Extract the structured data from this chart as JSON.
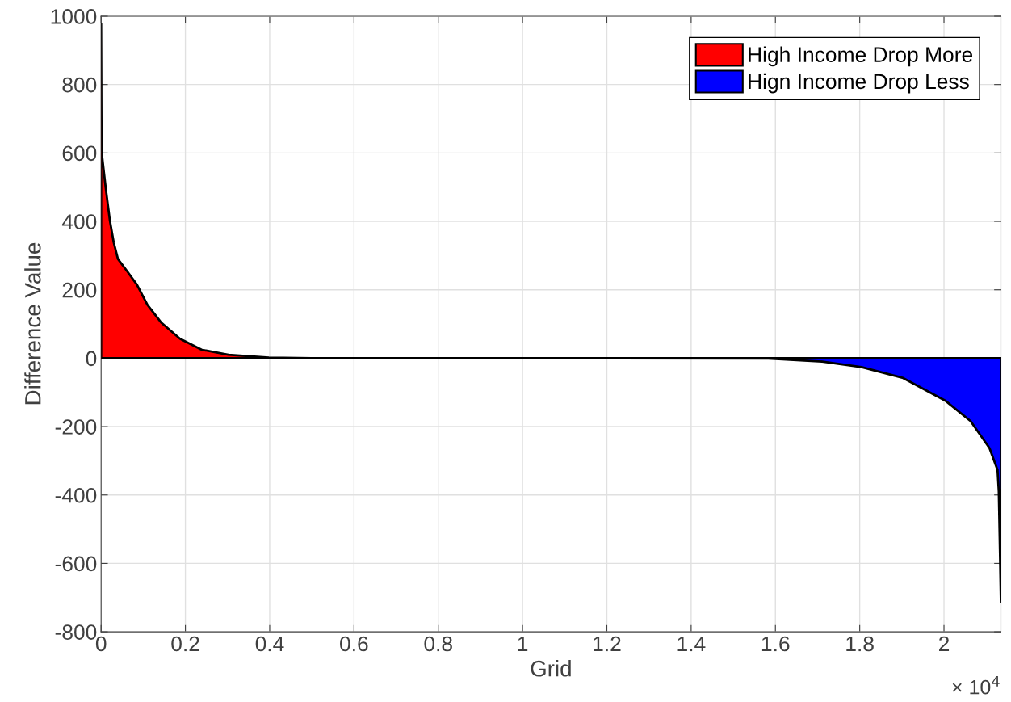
{
  "chart_data": {
    "type": "area",
    "xlabel": "Grid",
    "ylabel": "Difference Value",
    "xlim": [
      0,
      2.135
    ],
    "ylim": [
      -800,
      1000
    ],
    "xticks": [
      0,
      0.2,
      0.4,
      0.6,
      0.8,
      1,
      1.2,
      1.4,
      1.6,
      1.8,
      2
    ],
    "yticks": [
      -800,
      -600,
      -400,
      -200,
      0,
      200,
      400,
      600,
      800,
      1000
    ],
    "annotations": [
      "× 10$^{4}$"
    ],
    "grid": true,
    "legend": "top right",
    "series": [
      {
        "name": "High Income Drop More",
        "color": "#ff0000",
        "x": [
          0,
          0.001,
          0.011,
          0.021,
          0.03,
          0.04,
          0.059,
          0.085,
          0.11,
          0.142,
          0.187,
          0.238,
          0.302,
          0.398,
          0.5,
          1.06
        ],
        "values": [
          978,
          606,
          497,
          401,
          338,
          290,
          259,
          215,
          156,
          105,
          57,
          25,
          10,
          2,
          0,
          0
        ]
      },
      {
        "name": "Hign Income Drop Less",
        "color": "#0000ff",
        "x": [
          1.06,
          1.583,
          1.711,
          1.804,
          1.903,
          2.004,
          2.063,
          2.108,
          2.127,
          2.13,
          2.133,
          2.135
        ],
        "values": [
          0,
          -1,
          -10,
          -26,
          -58,
          -125,
          -184,
          -263,
          -327,
          -390,
          -580,
          -714
        ]
      }
    ]
  }
}
